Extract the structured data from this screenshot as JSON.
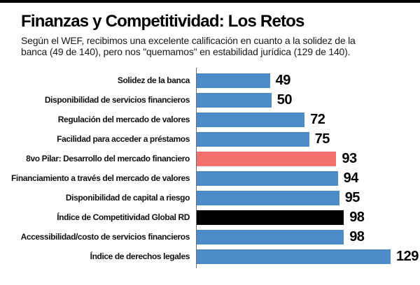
{
  "header": {
    "title": "Finanzas y Competitividad: Los Retos",
    "subtitle_line1": "Según el WEF, recibimos una excelente calificación en cuanto a la solidez de la",
    "subtitle_line2": "banca (49 de 140), pero nos \"quemamos\" en estabilidad jurídica (129 de 140)."
  },
  "chart_data": {
    "type": "bar",
    "orientation": "horizontal",
    "title": "Finanzas y Competitividad: Los Retos",
    "categories": [
      "Solidez de la banca",
      "Disponibilidad de servicios financieros",
      "Regulación del mercado de valores",
      "Facilidad para acceder a préstamos",
      "8vo Pilar: Desarrollo del mercado financiero",
      "Financiamiento a través del mercado de valores",
      "Disponibilidad de capital a riesgo",
      "Índice de Competitividad Global RD",
      "Accessibilidad/costo de servicios financieros",
      "Índice de derechos legales"
    ],
    "values": [
      49,
      50,
      72,
      75,
      93,
      94,
      95,
      98,
      98,
      129
    ],
    "value_labels": [
      "49",
      "50",
      "72",
      "75",
      "93",
      "94",
      "95",
      "98",
      "98",
      "129"
    ],
    "bar_colors": [
      "blue",
      "blue",
      "blue",
      "blue",
      "red",
      "blue",
      "blue",
      "black",
      "blue",
      "blue"
    ],
    "palette": {
      "blue": "#4D8CC8",
      "red": "#F4716E",
      "black": "#000000"
    },
    "xlim": [
      0,
      140
    ],
    "xlabel": "",
    "ylabel": "",
    "grid": false,
    "legend": "none",
    "axis_line_color": "#6e6e6e",
    "top_rule_color": "#000000"
  }
}
